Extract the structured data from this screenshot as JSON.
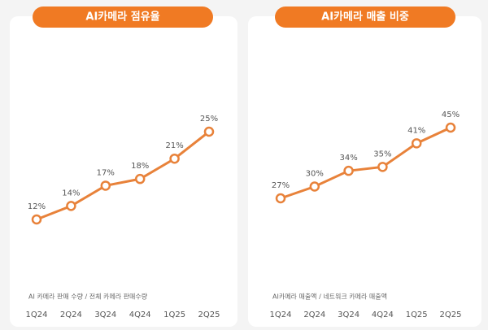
{
  "chart_data": [
    {
      "type": "line",
      "title": "AI카메라 점유율",
      "categories": [
        "1Q24",
        "2Q24",
        "3Q24",
        "4Q24",
        "1Q25",
        "2Q25"
      ],
      "values": [
        12,
        14,
        17,
        18,
        21,
        25
      ],
      "value_labels": [
        "12%",
        "14%",
        "17%",
        "18%",
        "21%",
        "25%"
      ],
      "color": "#e8823a",
      "note": "AI 카메라 판매 수량 / 전체 카메라 판매수량"
    },
    {
      "type": "line",
      "title": "AI카메라 매출 비중",
      "categories": [
        "1Q24",
        "2Q24",
        "3Q24",
        "4Q24",
        "1Q25",
        "2Q25"
      ],
      "values": [
        27,
        30,
        34,
        35,
        41,
        45
      ],
      "value_labels": [
        "27%",
        "30%",
        "34%",
        "35%",
        "41%",
        "45%"
      ],
      "color": "#e8823a",
      "note": "AI카메라 매출액 / 네트워크 카메라 매출액"
    }
  ]
}
